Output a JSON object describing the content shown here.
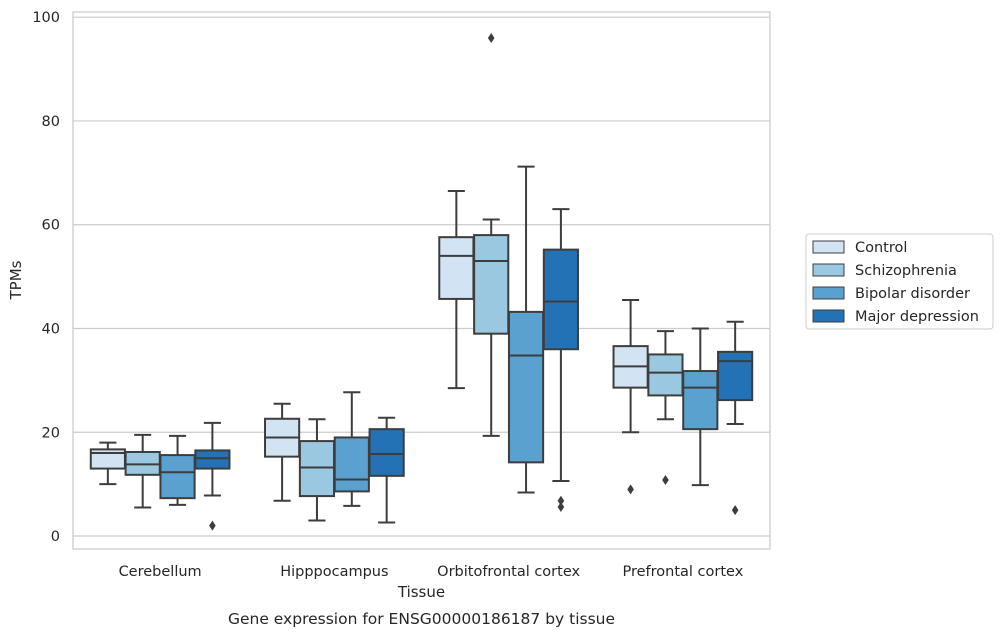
{
  "chart_data": {
    "type": "box",
    "xlabel": "Tissue",
    "ylabel": "TPMs",
    "caption": "Gene expression for ENSG00000186187 by tissue",
    "ylim": [
      -2.5,
      101
    ],
    "yticks": [
      0,
      20,
      40,
      60,
      80,
      100
    ],
    "grid": "horizontal",
    "legend_position": "center-right, outside plot",
    "categories": [
      "Cerebellum",
      "Hipppocampus",
      "Orbitofrontal cortex",
      "Prefrontal cortex"
    ],
    "series": [
      {
        "name": "Control",
        "color": "#d2e3f3",
        "boxes": [
          {
            "whislo": 10.0,
            "q1": 13.0,
            "med": 16.0,
            "q3": 16.7,
            "whishi": 18.0,
            "fliers": []
          },
          {
            "whislo": 6.8,
            "q1": 15.3,
            "med": 19.0,
            "q3": 22.6,
            "whishi": 25.5,
            "fliers": []
          },
          {
            "whislo": 28.5,
            "q1": 45.7,
            "med": 54.0,
            "q3": 57.6,
            "whishi": 66.5,
            "fliers": []
          },
          {
            "whislo": 20.0,
            "q1": 28.6,
            "med": 32.7,
            "q3": 36.6,
            "whishi": 45.5,
            "fliers": [
              9.0
            ]
          }
        ]
      },
      {
        "name": "Schizophrenia",
        "color": "#9ac8e0",
        "boxes": [
          {
            "whislo": 5.5,
            "q1": 11.8,
            "med": 13.8,
            "q3": 16.2,
            "whishi": 19.5,
            "fliers": []
          },
          {
            "whislo": 3.0,
            "q1": 7.7,
            "med": 13.2,
            "q3": 18.3,
            "whishi": 22.5,
            "fliers": []
          },
          {
            "whislo": 19.3,
            "q1": 39.0,
            "med": 53.0,
            "q3": 58.0,
            "whishi": 61.0,
            "fliers": [
              96.0
            ]
          },
          {
            "whislo": 22.5,
            "q1": 27.1,
            "med": 31.5,
            "q3": 35.0,
            "whishi": 39.5,
            "fliers": [
              10.8
            ]
          }
        ]
      },
      {
        "name": "Bipolar disorder",
        "color": "#5aa1cf",
        "boxes": [
          {
            "whislo": 6.0,
            "q1": 7.3,
            "med": 12.3,
            "q3": 15.6,
            "whishi": 19.3,
            "fliers": []
          },
          {
            "whislo": 5.8,
            "q1": 8.6,
            "med": 10.9,
            "q3": 19.0,
            "whishi": 27.7,
            "fliers": []
          },
          {
            "whislo": 8.4,
            "q1": 14.2,
            "med": 34.8,
            "q3": 43.2,
            "whishi": 71.2,
            "fliers": []
          },
          {
            "whislo": 9.8,
            "q1": 20.6,
            "med": 28.6,
            "q3": 31.8,
            "whishi": 40.0,
            "fliers": []
          }
        ]
      },
      {
        "name": "Major depression",
        "color": "#2272b5",
        "boxes": [
          {
            "whislo": 7.8,
            "q1": 13.0,
            "med": 15.0,
            "q3": 16.5,
            "whishi": 21.8,
            "fliers": [
              2.0
            ]
          },
          {
            "whislo": 2.6,
            "q1": 11.6,
            "med": 15.8,
            "q3": 20.6,
            "whishi": 22.8,
            "fliers": []
          },
          {
            "whislo": 10.6,
            "q1": 36.0,
            "med": 45.2,
            "q3": 55.2,
            "whishi": 63.0,
            "fliers": [
              5.6,
              6.8
            ]
          },
          {
            "whislo": 21.6,
            "q1": 26.2,
            "med": 33.7,
            "q3": 35.5,
            "whishi": 41.3,
            "fliers": [
              5.0
            ]
          }
        ]
      }
    ]
  }
}
